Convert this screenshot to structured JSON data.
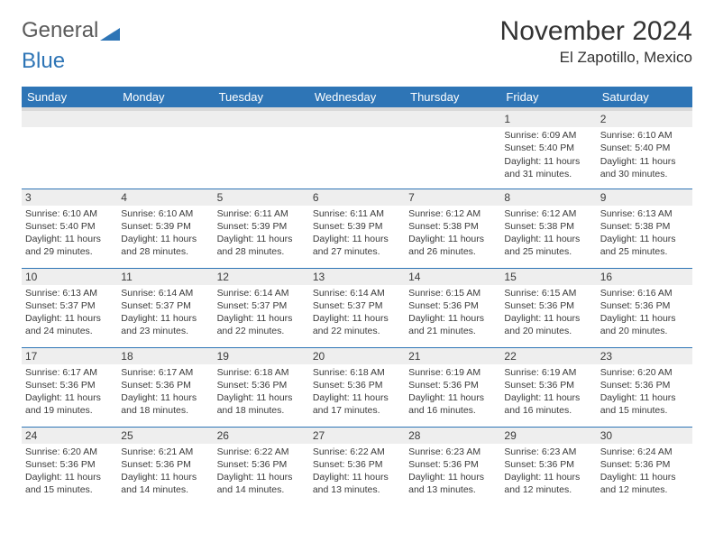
{
  "logo": {
    "text1": "General",
    "text2": "Blue",
    "tri_color": "#2e75b6"
  },
  "header": {
    "month_year": "November 2024",
    "location": "El Zapotillo, Mexico"
  },
  "calendar": {
    "day_headers": [
      "Sunday",
      "Monday",
      "Tuesday",
      "Wednesday",
      "Thursday",
      "Friday",
      "Saturday"
    ],
    "header_bg": "#2e75b6",
    "header_text_color": "#ffffff",
    "row_divider_color": "#2e75b6",
    "daynum_bg": "#eeeeee",
    "weeks": [
      [
        {
          "blank": true
        },
        {
          "blank": true
        },
        {
          "blank": true
        },
        {
          "blank": true
        },
        {
          "blank": true
        },
        {
          "day": "1",
          "sunrise": "Sunrise: 6:09 AM",
          "sunset": "Sunset: 5:40 PM",
          "daylight": "Daylight: 11 hours and 31 minutes."
        },
        {
          "day": "2",
          "sunrise": "Sunrise: 6:10 AM",
          "sunset": "Sunset: 5:40 PM",
          "daylight": "Daylight: 11 hours and 30 minutes."
        }
      ],
      [
        {
          "day": "3",
          "sunrise": "Sunrise: 6:10 AM",
          "sunset": "Sunset: 5:40 PM",
          "daylight": "Daylight: 11 hours and 29 minutes."
        },
        {
          "day": "4",
          "sunrise": "Sunrise: 6:10 AM",
          "sunset": "Sunset: 5:39 PM",
          "daylight": "Daylight: 11 hours and 28 minutes."
        },
        {
          "day": "5",
          "sunrise": "Sunrise: 6:11 AM",
          "sunset": "Sunset: 5:39 PM",
          "daylight": "Daylight: 11 hours and 28 minutes."
        },
        {
          "day": "6",
          "sunrise": "Sunrise: 6:11 AM",
          "sunset": "Sunset: 5:39 PM",
          "daylight": "Daylight: 11 hours and 27 minutes."
        },
        {
          "day": "7",
          "sunrise": "Sunrise: 6:12 AM",
          "sunset": "Sunset: 5:38 PM",
          "daylight": "Daylight: 11 hours and 26 minutes."
        },
        {
          "day": "8",
          "sunrise": "Sunrise: 6:12 AM",
          "sunset": "Sunset: 5:38 PM",
          "daylight": "Daylight: 11 hours and 25 minutes."
        },
        {
          "day": "9",
          "sunrise": "Sunrise: 6:13 AM",
          "sunset": "Sunset: 5:38 PM",
          "daylight": "Daylight: 11 hours and 25 minutes."
        }
      ],
      [
        {
          "day": "10",
          "sunrise": "Sunrise: 6:13 AM",
          "sunset": "Sunset: 5:37 PM",
          "daylight": "Daylight: 11 hours and 24 minutes."
        },
        {
          "day": "11",
          "sunrise": "Sunrise: 6:14 AM",
          "sunset": "Sunset: 5:37 PM",
          "daylight": "Daylight: 11 hours and 23 minutes."
        },
        {
          "day": "12",
          "sunrise": "Sunrise: 6:14 AM",
          "sunset": "Sunset: 5:37 PM",
          "daylight": "Daylight: 11 hours and 22 minutes."
        },
        {
          "day": "13",
          "sunrise": "Sunrise: 6:14 AM",
          "sunset": "Sunset: 5:37 PM",
          "daylight": "Daylight: 11 hours and 22 minutes."
        },
        {
          "day": "14",
          "sunrise": "Sunrise: 6:15 AM",
          "sunset": "Sunset: 5:36 PM",
          "daylight": "Daylight: 11 hours and 21 minutes."
        },
        {
          "day": "15",
          "sunrise": "Sunrise: 6:15 AM",
          "sunset": "Sunset: 5:36 PM",
          "daylight": "Daylight: 11 hours and 20 minutes."
        },
        {
          "day": "16",
          "sunrise": "Sunrise: 6:16 AM",
          "sunset": "Sunset: 5:36 PM",
          "daylight": "Daylight: 11 hours and 20 minutes."
        }
      ],
      [
        {
          "day": "17",
          "sunrise": "Sunrise: 6:17 AM",
          "sunset": "Sunset: 5:36 PM",
          "daylight": "Daylight: 11 hours and 19 minutes."
        },
        {
          "day": "18",
          "sunrise": "Sunrise: 6:17 AM",
          "sunset": "Sunset: 5:36 PM",
          "daylight": "Daylight: 11 hours and 18 minutes."
        },
        {
          "day": "19",
          "sunrise": "Sunrise: 6:18 AM",
          "sunset": "Sunset: 5:36 PM",
          "daylight": "Daylight: 11 hours and 18 minutes."
        },
        {
          "day": "20",
          "sunrise": "Sunrise: 6:18 AM",
          "sunset": "Sunset: 5:36 PM",
          "daylight": "Daylight: 11 hours and 17 minutes."
        },
        {
          "day": "21",
          "sunrise": "Sunrise: 6:19 AM",
          "sunset": "Sunset: 5:36 PM",
          "daylight": "Daylight: 11 hours and 16 minutes."
        },
        {
          "day": "22",
          "sunrise": "Sunrise: 6:19 AM",
          "sunset": "Sunset: 5:36 PM",
          "daylight": "Daylight: 11 hours and 16 minutes."
        },
        {
          "day": "23",
          "sunrise": "Sunrise: 6:20 AM",
          "sunset": "Sunset: 5:36 PM",
          "daylight": "Daylight: 11 hours and 15 minutes."
        }
      ],
      [
        {
          "day": "24",
          "sunrise": "Sunrise: 6:20 AM",
          "sunset": "Sunset: 5:36 PM",
          "daylight": "Daylight: 11 hours and 15 minutes."
        },
        {
          "day": "25",
          "sunrise": "Sunrise: 6:21 AM",
          "sunset": "Sunset: 5:36 PM",
          "daylight": "Daylight: 11 hours and 14 minutes."
        },
        {
          "day": "26",
          "sunrise": "Sunrise: 6:22 AM",
          "sunset": "Sunset: 5:36 PM",
          "daylight": "Daylight: 11 hours and 14 minutes."
        },
        {
          "day": "27",
          "sunrise": "Sunrise: 6:22 AM",
          "sunset": "Sunset: 5:36 PM",
          "daylight": "Daylight: 11 hours and 13 minutes."
        },
        {
          "day": "28",
          "sunrise": "Sunrise: 6:23 AM",
          "sunset": "Sunset: 5:36 PM",
          "daylight": "Daylight: 11 hours and 13 minutes."
        },
        {
          "day": "29",
          "sunrise": "Sunrise: 6:23 AM",
          "sunset": "Sunset: 5:36 PM",
          "daylight": "Daylight: 11 hours and 12 minutes."
        },
        {
          "day": "30",
          "sunrise": "Sunrise: 6:24 AM",
          "sunset": "Sunset: 5:36 PM",
          "daylight": "Daylight: 11 hours and 12 minutes."
        }
      ]
    ]
  }
}
